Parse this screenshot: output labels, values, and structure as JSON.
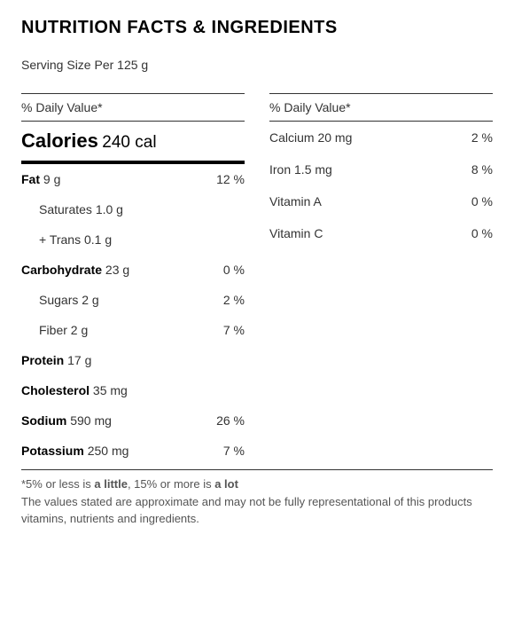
{
  "title": "NUTRITION FACTS & INGREDIENTS",
  "serving": "Serving Size Per 125 g",
  "dvHeader": "% Daily Value*",
  "calories": {
    "label": "Calories",
    "value": "240 cal"
  },
  "left": [
    {
      "name": "Fat",
      "amount": "9 g",
      "pct": "12 %",
      "bold": true
    },
    {
      "name": "Saturates",
      "amount": "1.0 g",
      "pct": "",
      "sub": true
    },
    {
      "name": "+ Trans",
      "amount": "0.1 g",
      "pct": "",
      "sub": true
    },
    {
      "name": "Carbohydrate",
      "amount": "23 g",
      "pct": "0 %",
      "bold": true
    },
    {
      "name": "Sugars",
      "amount": "2 g",
      "pct": "2 %",
      "sub": true
    },
    {
      "name": "Fiber",
      "amount": "2 g",
      "pct": "7 %",
      "sub": true
    },
    {
      "name": "Protein",
      "amount": "17 g",
      "pct": "",
      "bold": true
    },
    {
      "name": "Cholesterol",
      "amount": "35 mg",
      "pct": "",
      "bold": true
    },
    {
      "name": "Sodium",
      "amount": "590 mg",
      "pct": "26 %",
      "bold": true
    },
    {
      "name": "Potassium",
      "amount": "250 mg",
      "pct": "7 %",
      "bold": true
    }
  ],
  "right": [
    {
      "name": "Calcium",
      "amount": "20 mg",
      "pct": "2 %"
    },
    {
      "name": "Iron",
      "amount": "1.5 mg",
      "pct": "8 %"
    },
    {
      "name": "Vitamin A",
      "amount": "",
      "pct": "0 %"
    },
    {
      "name": "Vitamin C",
      "amount": "",
      "pct": "0 %"
    }
  ],
  "footnote": {
    "pre": "*5% or less is ",
    "little": "a little",
    "mid": ", 15% or more is ",
    "lot": "a lot",
    "disclaimer": "The values stated are approximate and may not be fully representational of this products vitamins, nutrients and ingredients."
  }
}
